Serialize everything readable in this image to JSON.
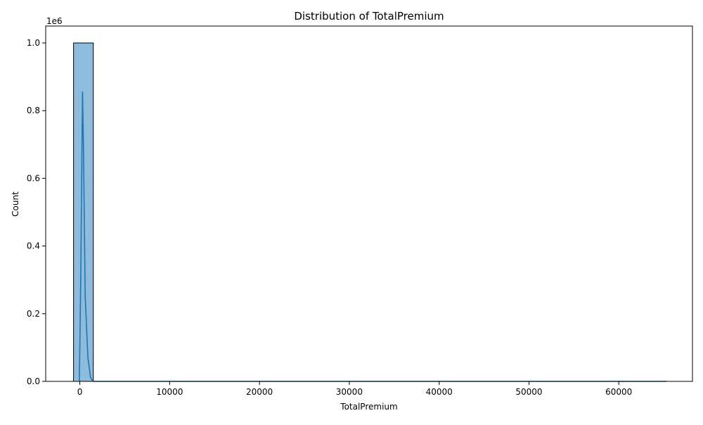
{
  "chart_data": {
    "type": "histogram",
    "title": "Distribution of TotalPremium",
    "xlabel": "TotalPremium",
    "ylabel": "Count",
    "y_scale_label": "1e6",
    "xlim": [
      -3800,
      68200
    ],
    "ylim": [
      0,
      1050000
    ],
    "x_ticks": [
      0,
      10000,
      20000,
      30000,
      40000,
      50000,
      60000
    ],
    "x_tick_labels": [
      "0",
      "10000",
      "20000",
      "30000",
      "40000",
      "50000",
      "60000"
    ],
    "y_ticks": [
      0,
      200000,
      400000,
      600000,
      800000,
      1000000
    ],
    "y_tick_labels": [
      "0.0",
      "0.2",
      "0.4",
      "0.6",
      "0.8",
      "1.0"
    ],
    "grid": false,
    "bins": [
      {
        "x0": -700,
        "x1": 1500,
        "count": 1000000
      },
      {
        "x0": 1500,
        "x1": 65300,
        "count": 0
      }
    ],
    "kde": {
      "x": [
        -50,
        100,
        300,
        400,
        600,
        900,
        1200,
        1500,
        3000,
        10000,
        30000,
        50000,
        65300
      ],
      "y": [
        0,
        300000,
        855000,
        700000,
        250000,
        70000,
        10000,
        0,
        0,
        0,
        0,
        0,
        0
      ]
    },
    "colors": {
      "bar_fill": "#8fbcdb",
      "bar_edge": "#000000",
      "kde_line": "#1f77b4"
    }
  }
}
